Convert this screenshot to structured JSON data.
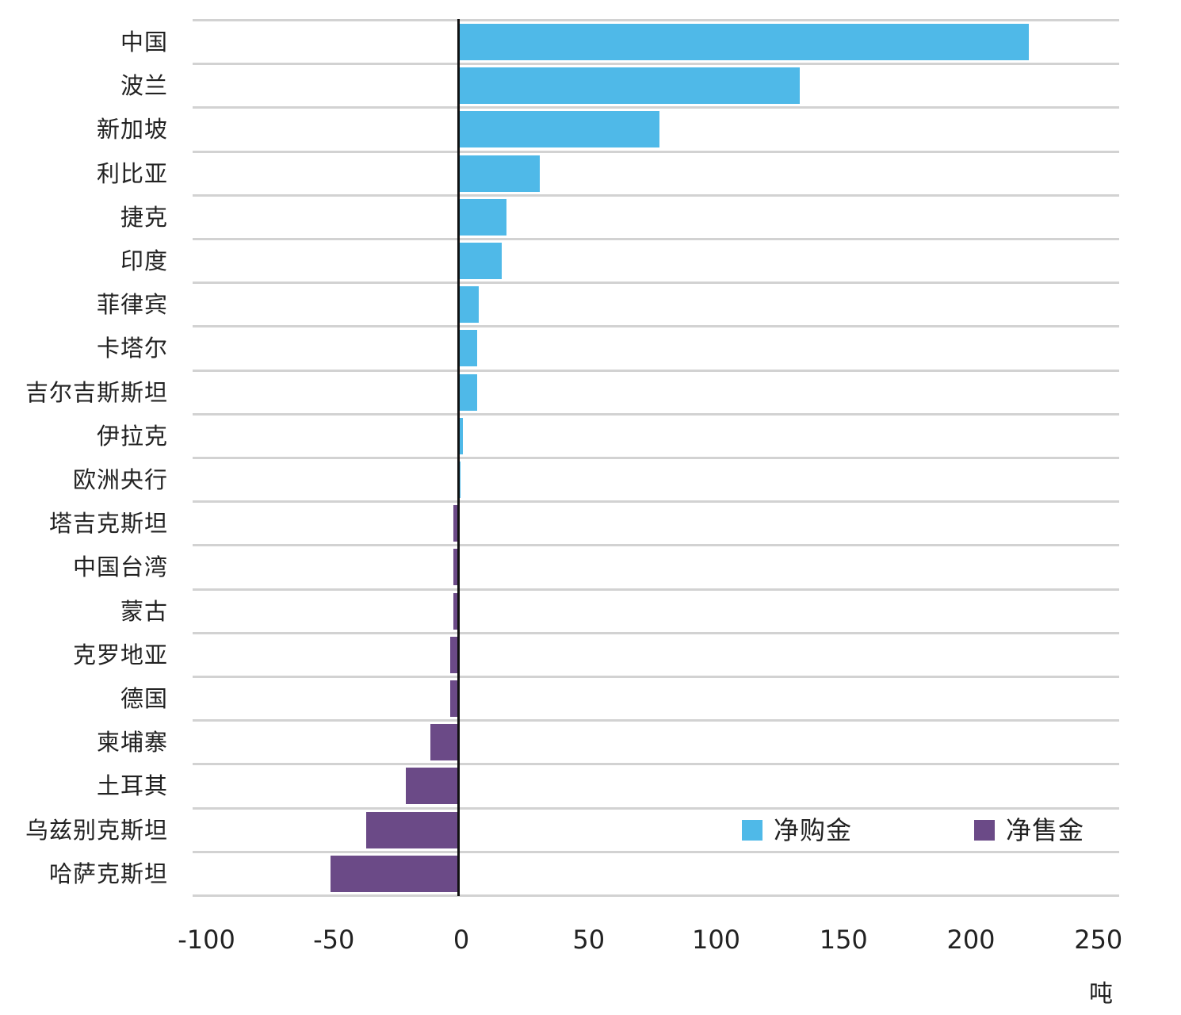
{
  "chart_data": {
    "type": "bar",
    "orientation": "horizontal",
    "title": "",
    "xlabel": "吨",
    "ylabel": "",
    "xlim": [
      -100,
      250
    ],
    "x_ticks": [
      -100,
      -50,
      0,
      50,
      100,
      150,
      200,
      250
    ],
    "grid": true,
    "legend_position": "lower right (inside plot)",
    "categories": [
      "中国",
      "波兰",
      "新加坡",
      "利比亚",
      "捷克",
      "印度",
      "菲律宾",
      "卡塔尔",
      "吉尔吉斯斯坦",
      "伊拉克",
      "欧洲央行",
      "塔吉克斯坦",
      "中国台湾",
      "蒙古",
      "克罗地亚",
      "德国",
      "柬埔寨",
      "土耳其",
      "乌兹别克斯坦",
      "哈萨克斯坦"
    ],
    "values": [
      224,
      134,
      79,
      32,
      19,
      17,
      8,
      7.5,
      7.5,
      2,
      1,
      -2,
      -2,
      -2,
      -3,
      -3,
      -11,
      -20.5,
      -36,
      -50
    ],
    "series": [
      {
        "name": "净购金",
        "color": "#4fb9e8",
        "applies_to": "positive values"
      },
      {
        "name": "净售金",
        "color": "#6b4a87",
        "applies_to": "negative values"
      }
    ]
  },
  "axis": {
    "ticks": [
      "-100",
      "-50",
      "0",
      "50",
      "100",
      "150",
      "200",
      "250"
    ],
    "unit": "吨"
  },
  "legend": [
    {
      "label": "净购金",
      "color": "#4fb9e8"
    },
    {
      "label": "净售金",
      "color": "#6b4a87"
    }
  ],
  "colors": {
    "positive": "#4fb9e8",
    "negative": "#6b4a87",
    "grid": "#d2d2d2",
    "zero_line": "#111111"
  }
}
